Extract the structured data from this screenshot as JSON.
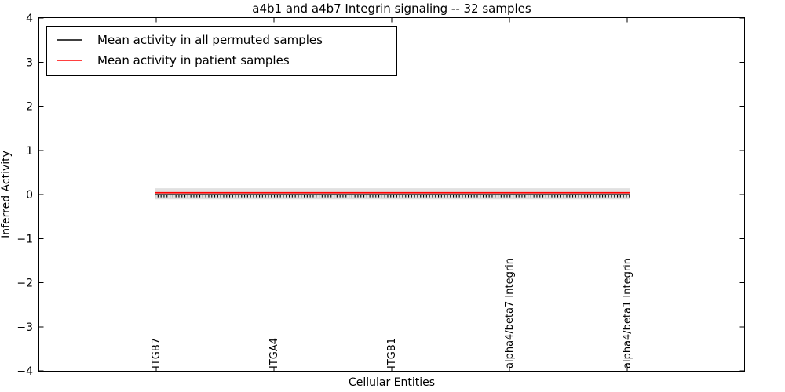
{
  "figure": {
    "title": "a4b1 and a4b7 Integrin signaling -- 32 samples",
    "background_color": "#ffffff",
    "frame_color": "#000000"
  },
  "axes": {
    "xlabel": "Cellular Entities",
    "ylabel": "Inferred Activity",
    "y_tick_labels": [
      "4",
      "3",
      "2",
      "1",
      "0",
      "−1",
      "−2",
      "−3",
      "−4"
    ],
    "x_tick_labels": [
      "ITGB7",
      "ITGA4",
      "ITGB1",
      "alpha4/beta7 Integrin",
      "alpha4/beta1 Integrin"
    ]
  },
  "legend": {
    "items": [
      {
        "label": "Mean activity in all permuted samples",
        "color": "#000000"
      },
      {
        "label": "Mean activity in patient samples",
        "color": "#ff0000"
      }
    ]
  },
  "chart_data": {
    "type": "line",
    "title": "a4b1 and a4b7 Integrin signaling -- 32 samples",
    "xlabel": "Cellular Entities",
    "ylabel": "Inferred Activity",
    "ylim": [
      -4,
      4
    ],
    "xlim": [
      -1,
      5
    ],
    "grid": false,
    "legend_position": "upper left",
    "categories": [
      "ITGB7",
      "ITGA4",
      "ITGB1",
      "alpha4/beta7 Integrin",
      "alpha4/beta1 Integrin"
    ],
    "series": [
      {
        "name": "Mean activity in all permuted samples",
        "color": "#000000",
        "style": "solid-with-errorbar-caps",
        "values": [
          0.0,
          0.0,
          0.0,
          0.0,
          0.0
        ]
      },
      {
        "name": "Mean activity in patient samples",
        "color": "#ff0000",
        "style": "solid",
        "values": [
          0.04,
          0.04,
          0.04,
          0.04,
          0.04
        ]
      }
    ],
    "band": {
      "name": "permuted activity spread",
      "color": "#e0e0e0",
      "upper": [
        0.14,
        0.14,
        0.14,
        0.14,
        0.14
      ],
      "lower": [
        -0.11,
        -0.11,
        -0.11,
        -0.11,
        -0.11
      ]
    }
  }
}
